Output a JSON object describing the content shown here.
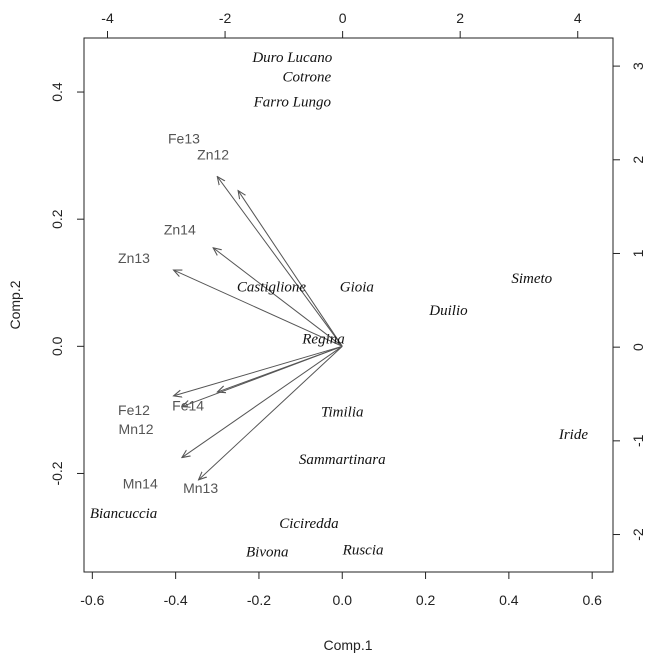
{
  "chart_data": {
    "type": "scatter",
    "subtype": "biplot",
    "title": "",
    "xlabel": "Comp.1",
    "ylabel": "Comp.2",
    "xlim": [
      -0.62,
      0.65
    ],
    "ylim": [
      -0.355,
      0.485
    ],
    "xticks": [
      -0.6,
      -0.4,
      -0.2,
      0.0,
      0.2,
      0.4,
      0.6
    ],
    "xtick_labels": [
      "-0.6",
      "-0.4",
      "-0.2",
      "0.0",
      "0.2",
      "0.4",
      "0.6"
    ],
    "yticks": [
      -0.2,
      0.0,
      0.2,
      0.4
    ],
    "ytick_labels": [
      "-0.2",
      "0.0",
      "0.2",
      "0.4"
    ],
    "top_xlim": [
      -4.4,
      4.6
    ],
    "top_xticks": [
      -4,
      -2,
      0,
      2,
      4
    ],
    "top_xtick_labels": [
      "-4",
      "-2",
      "0",
      "2",
      "4"
    ],
    "right_ylim": [
      -2.4,
      3.3
    ],
    "right_yticks": [
      -2,
      -1,
      0,
      1,
      2,
      3
    ],
    "right_ytick_labels": [
      "-2",
      "-1",
      "0",
      "1",
      "2",
      "3"
    ],
    "observations": [
      {
        "label": "Duro Lucano",
        "x": -0.12,
        "y": 0.453
      },
      {
        "label": "Cotrone",
        "x": -0.085,
        "y": 0.422
      },
      {
        "label": "Farro Lungo",
        "x": -0.12,
        "y": 0.383
      },
      {
        "label": "Castiglione",
        "x": -0.17,
        "y": 0.092
      },
      {
        "label": "Gioia",
        "x": 0.035,
        "y": 0.092
      },
      {
        "label": "Simeto",
        "x": 0.455,
        "y": 0.105
      },
      {
        "label": "Duilio",
        "x": 0.255,
        "y": 0.055
      },
      {
        "label": "Regina",
        "x": -0.045,
        "y": 0.01
      },
      {
        "label": "Timilia",
        "x": 0.0,
        "y": -0.105
      },
      {
        "label": "Iride",
        "x": 0.555,
        "y": -0.14
      },
      {
        "label": "Sammartinara",
        "x": 0.0,
        "y": -0.18
      },
      {
        "label": "Biancuccia",
        "x": -0.525,
        "y": -0.265
      },
      {
        "label": "Ciciredda",
        "x": -0.08,
        "y": -0.28
      },
      {
        "label": "Bivona",
        "x": -0.18,
        "y": -0.325
      },
      {
        "label": "Ruscia",
        "x": 0.05,
        "y": -0.322
      }
    ],
    "loadings": [
      {
        "label": "Fe13",
        "x": -0.25,
        "y": 0.245,
        "label_x": -0.38,
        "label_y": 0.325
      },
      {
        "label": "Zn12",
        "x": -0.3,
        "y": 0.267,
        "label_x": -0.31,
        "label_y": 0.3
      },
      {
        "label": "Zn14",
        "x": -0.31,
        "y": 0.155,
        "label_x": -0.39,
        "label_y": 0.182
      },
      {
        "label": "Zn13",
        "x": -0.405,
        "y": 0.12,
        "label_x": -0.5,
        "label_y": 0.137
      },
      {
        "label": "Fe12",
        "x": -0.405,
        "y": -0.078,
        "label_x": -0.5,
        "label_y": -0.102
      },
      {
        "label": "Fe14",
        "x": -0.3,
        "y": -0.072,
        "label_x": -0.37,
        "label_y": -0.095
      },
      {
        "label": "Mn12",
        "x": -0.385,
        "y": -0.095,
        "label_x": -0.495,
        "label_y": -0.132
      },
      {
        "label": "Mn14",
        "x": -0.385,
        "y": -0.175,
        "label_x": -0.485,
        "label_y": -0.218
      },
      {
        "label": "Mn13",
        "x": -0.345,
        "y": -0.21,
        "label_x": -0.34,
        "label_y": -0.225
      }
    ],
    "grid": false,
    "legend": "none"
  }
}
